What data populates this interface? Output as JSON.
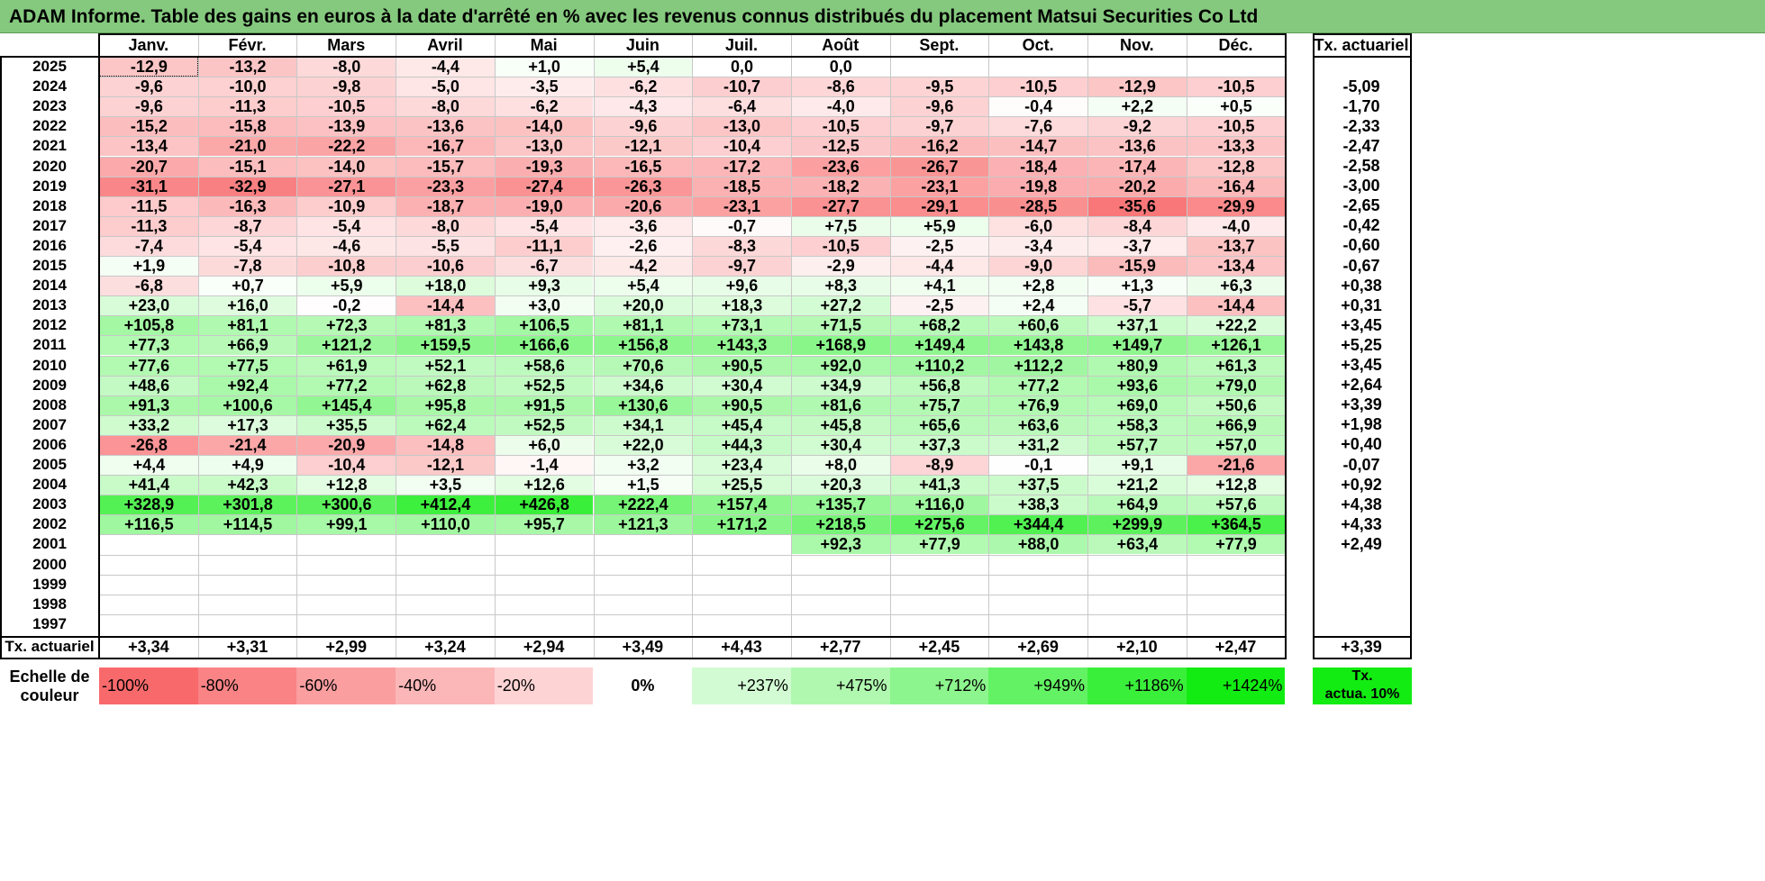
{
  "title": "ADAM Informe. Table des gains en euros à la date d'arrêté en % avec les revenus connus distribués du placement Matsui Securities Co Ltd",
  "months": [
    "Janv.",
    "Févr.",
    "Mars",
    "Avril",
    "Mai",
    "Juin",
    "Juil.",
    "Août",
    "Sept.",
    "Oct.",
    "Nov.",
    "Déc."
  ],
  "rate_header": "Tx. actuariel",
  "rows": [
    {
      "year": "2025",
      "values": [
        "-12,9",
        "-13,2",
        "-8,0",
        "-4,4",
        "+1,0",
        "+5,4",
        "0,0",
        "0,0",
        "",
        "",
        "",
        ""
      ],
      "rate": ""
    },
    {
      "year": "2024",
      "values": [
        "-9,6",
        "-10,0",
        "-9,8",
        "-5,0",
        "-3,5",
        "-6,2",
        "-10,7",
        "-8,6",
        "-9,5",
        "-10,5",
        "-12,9",
        "-10,5"
      ],
      "rate": "-5,09"
    },
    {
      "year": "2023",
      "values": [
        "-9,6",
        "-11,3",
        "-10,5",
        "-8,0",
        "-6,2",
        "-4,3",
        "-6,4",
        "-4,0",
        "-9,6",
        "-0,4",
        "+2,2",
        "+0,5"
      ],
      "rate": "-1,70"
    },
    {
      "year": "2022",
      "values": [
        "-15,2",
        "-15,8",
        "-13,9",
        "-13,6",
        "-14,0",
        "-9,6",
        "-13,0",
        "-10,5",
        "-9,7",
        "-7,6",
        "-9,2",
        "-10,5"
      ],
      "rate": "-2,33"
    },
    {
      "year": "2021",
      "values": [
        "-13,4",
        "-21,0",
        "-22,2",
        "-16,7",
        "-13,0",
        "-12,1",
        "-10,4",
        "-12,5",
        "-16,2",
        "-14,7",
        "-13,6",
        "-13,3"
      ],
      "rate": "-2,47"
    },
    {
      "year": "2020",
      "values": [
        "-20,7",
        "-15,1",
        "-14,0",
        "-15,7",
        "-19,3",
        "-16,5",
        "-17,2",
        "-23,6",
        "-26,7",
        "-18,4",
        "-17,4",
        "-12,8"
      ],
      "rate": "-2,58"
    },
    {
      "year": "2019",
      "values": [
        "-31,1",
        "-32,9",
        "-27,1",
        "-23,3",
        "-27,4",
        "-26,3",
        "-18,5",
        "-18,2",
        "-23,1",
        "-19,8",
        "-20,2",
        "-16,4"
      ],
      "rate": "-3,00"
    },
    {
      "year": "2018",
      "values": [
        "-11,5",
        "-16,3",
        "-10,9",
        "-18,7",
        "-19,0",
        "-20,6",
        "-23,1",
        "-27,7",
        "-29,1",
        "-28,5",
        "-35,6",
        "-29,9"
      ],
      "rate": "-2,65"
    },
    {
      "year": "2017",
      "values": [
        "-11,3",
        "-8,7",
        "-5,4",
        "-8,0",
        "-5,4",
        "-3,6",
        "-0,7",
        "+7,5",
        "+5,9",
        "-6,0",
        "-8,4",
        "-4,0"
      ],
      "rate": "-0,42"
    },
    {
      "year": "2016",
      "values": [
        "-7,4",
        "-5,4",
        "-4,6",
        "-5,5",
        "-11,1",
        "-2,6",
        "-8,3",
        "-10,5",
        "-2,5",
        "-3,4",
        "-3,7",
        "-13,7"
      ],
      "rate": "-0,60"
    },
    {
      "year": "2015",
      "values": [
        "+1,9",
        "-7,8",
        "-10,8",
        "-10,6",
        "-6,7",
        "-4,2",
        "-9,7",
        "-2,9",
        "-4,4",
        "-9,0",
        "-15,9",
        "-13,4"
      ],
      "rate": "-0,67"
    },
    {
      "year": "2014",
      "values": [
        "-6,8",
        "+0,7",
        "+5,9",
        "+18,0",
        "+9,3",
        "+5,4",
        "+9,6",
        "+8,3",
        "+4,1",
        "+2,8",
        "+1,3",
        "+6,3"
      ],
      "rate": "+0,38"
    },
    {
      "year": "2013",
      "values": [
        "+23,0",
        "+16,0",
        "-0,2",
        "-14,4",
        "+3,0",
        "+20,0",
        "+18,3",
        "+27,2",
        "-2,5",
        "+2,4",
        "-5,7",
        "-14,4"
      ],
      "rate": "+0,31"
    },
    {
      "year": "2012",
      "values": [
        "+105,8",
        "+81,1",
        "+72,3",
        "+81,3",
        "+106,5",
        "+81,1",
        "+73,1",
        "+71,5",
        "+68,2",
        "+60,6",
        "+37,1",
        "+22,2"
      ],
      "rate": "+3,45"
    },
    {
      "year": "2011",
      "values": [
        "+77,3",
        "+66,9",
        "+121,2",
        "+159,5",
        "+166,6",
        "+156,8",
        "+143,3",
        "+168,9",
        "+149,4",
        "+143,8",
        "+149,7",
        "+126,1"
      ],
      "rate": "+5,25"
    },
    {
      "year": "2010",
      "values": [
        "+77,6",
        "+77,5",
        "+61,9",
        "+52,1",
        "+58,6",
        "+70,6",
        "+90,5",
        "+92,0",
        "+110,2",
        "+112,2",
        "+80,9",
        "+61,3"
      ],
      "rate": "+3,45"
    },
    {
      "year": "2009",
      "values": [
        "+48,6",
        "+92,4",
        "+77,2",
        "+62,8",
        "+52,5",
        "+34,6",
        "+30,4",
        "+34,9",
        "+56,8",
        "+77,2",
        "+93,6",
        "+79,0"
      ],
      "rate": "+2,64"
    },
    {
      "year": "2008",
      "values": [
        "+91,3",
        "+100,6",
        "+145,4",
        "+95,8",
        "+91,5",
        "+130,6",
        "+90,5",
        "+81,6",
        "+75,7",
        "+76,9",
        "+69,0",
        "+50,6"
      ],
      "rate": "+3,39"
    },
    {
      "year": "2007",
      "values": [
        "+33,2",
        "+17,3",
        "+35,5",
        "+62,4",
        "+52,5",
        "+34,1",
        "+45,4",
        "+45,8",
        "+65,6",
        "+63,6",
        "+58,3",
        "+66,9"
      ],
      "rate": "+1,98"
    },
    {
      "year": "2006",
      "values": [
        "-26,8",
        "-21,4",
        "-20,9",
        "-14,8",
        "+6,0",
        "+22,0",
        "+44,3",
        "+30,4",
        "+37,3",
        "+31,2",
        "+57,7",
        "+57,0"
      ],
      "rate": "+0,40"
    },
    {
      "year": "2005",
      "values": [
        "+4,4",
        "+4,9",
        "-10,4",
        "-12,1",
        "-1,4",
        "+3,2",
        "+23,4",
        "+8,0",
        "-8,9",
        "-0,1",
        "+9,1",
        "-21,6"
      ],
      "rate": "-0,07"
    },
    {
      "year": "2004",
      "values": [
        "+41,4",
        "+42,3",
        "+12,8",
        "+3,5",
        "+12,6",
        "+1,5",
        "+25,5",
        "+20,3",
        "+41,3",
        "+37,5",
        "+21,2",
        "+12,8"
      ],
      "rate": "+0,92"
    },
    {
      "year": "2003",
      "values": [
        "+328,9",
        "+301,8",
        "+300,6",
        "+412,4",
        "+426,8",
        "+222,4",
        "+157,4",
        "+135,7",
        "+116,0",
        "+38,3",
        "+64,9",
        "+57,6"
      ],
      "rate": "+4,38"
    },
    {
      "year": "2002",
      "values": [
        "+116,5",
        "+114,5",
        "+99,1",
        "+110,0",
        "+95,7",
        "+121,3",
        "+171,2",
        "+218,5",
        "+275,6",
        "+344,4",
        "+299,9",
        "+364,5"
      ],
      "rate": "+4,33"
    },
    {
      "year": "2001",
      "values": [
        "",
        "",
        "",
        "",
        "",
        "",
        "",
        "+92,3",
        "+77,9",
        "+88,0",
        "+63,4",
        "+77,9"
      ],
      "rate": "+2,49"
    },
    {
      "year": "2000",
      "values": [
        "",
        "",
        "",
        "",
        "",
        "",
        "",
        "",
        "",
        "",
        "",
        ""
      ],
      "rate": ""
    },
    {
      "year": "1999",
      "values": [
        "",
        "",
        "",
        "",
        "",
        "",
        "",
        "",
        "",
        "",
        "",
        ""
      ],
      "rate": ""
    },
    {
      "year": "1998",
      "values": [
        "",
        "",
        "",
        "",
        "",
        "",
        "",
        "",
        "",
        "",
        "",
        ""
      ],
      "rate": ""
    },
    {
      "year": "1997",
      "values": [
        "",
        "",
        "",
        "",
        "",
        "",
        "",
        "",
        "",
        "",
        "",
        ""
      ],
      "rate": ""
    }
  ],
  "footer": {
    "label": "Tx. actuariel",
    "values": [
      "+3,34",
      "+3,31",
      "+2,99",
      "+3,24",
      "+2,94",
      "+3,49",
      "+4,43",
      "+2,77",
      "+2,45",
      "+2,69",
      "+2,10",
      "+2,47"
    ],
    "total": "+3,39"
  },
  "scale": {
    "label_line1": "Echelle de",
    "label_line2": "couleur",
    "items": [
      {
        "text": "-100%",
        "color": "#f8696b",
        "align": "left"
      },
      {
        "text": "-80%",
        "color": "#f98385",
        "align": "left"
      },
      {
        "text": "-60%",
        "color": "#fa9ea0",
        "align": "left"
      },
      {
        "text": "-40%",
        "color": "#fbb7b8",
        "align": "left"
      },
      {
        "text": "-20%",
        "color": "#fdd3d4",
        "align": "left"
      },
      {
        "text": "0%",
        "color": "#ffffff",
        "align": "center"
      },
      {
        "text": "+237%",
        "color": "#d3fbd3",
        "align": "right"
      },
      {
        "text": "+475%",
        "color": "#b0f8b0",
        "align": "right"
      },
      {
        "text": "+712%",
        "color": "#8df58d",
        "align": "right"
      },
      {
        "text": "+949%",
        "color": "#63f263",
        "align": "right"
      },
      {
        "text": "+1186%",
        "color": "#3aef3a",
        "align": "right"
      },
      {
        "text": "+1424%",
        "color": "#12ec12",
        "align": "right"
      }
    ],
    "rate_line1": "Tx.",
    "rate_line2": "actua. 10%",
    "rate_color": "#12ec12"
  },
  "colors": {
    "title_bg": "#85c97e",
    "negative": "#f8696b",
    "positive": "#12ec12"
  }
}
